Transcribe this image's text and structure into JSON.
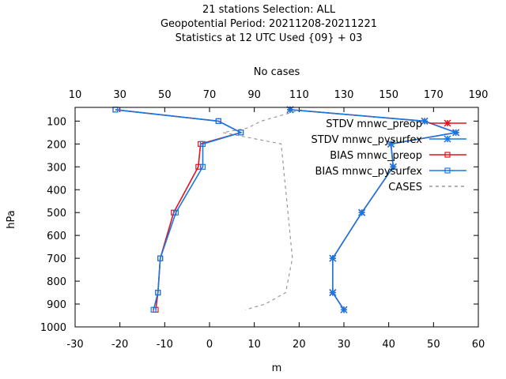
{
  "chart_data": {
    "type": "line",
    "title_lines": [
      "21 stations Selection: ALL",
      "Geopotential  Period: 20211208-20211221",
      "Statistics at 12 UTC  Used {09} + 03"
    ],
    "xlabel": "m",
    "ylabel": "hPa",
    "x2label": "No cases",
    "xlim": [
      -30,
      60
    ],
    "x2lim": [
      10,
      190
    ],
    "ylim": [
      1000,
      40
    ],
    "xticks": [
      -30,
      -20,
      -10,
      0,
      10,
      20,
      30,
      40,
      50,
      60
    ],
    "x2ticks": [
      10,
      30,
      50,
      70,
      90,
      110,
      130,
      150,
      170,
      190
    ],
    "yticks": [
      100,
      200,
      300,
      400,
      500,
      600,
      700,
      800,
      900,
      1000
    ],
    "legend_position": "top-right",
    "series": [
      {
        "name": "STDV mnwc_preop",
        "color": "#e0141e",
        "marker": "star",
        "dash": "",
        "axis": "x",
        "points": [
          [
            18,
            50
          ],
          [
            48,
            100
          ],
          [
            55,
            150
          ],
          [
            40.5,
            200
          ],
          [
            41,
            300
          ],
          [
            34,
            500
          ],
          [
            27.5,
            700
          ],
          [
            27.5,
            850
          ],
          [
            30,
            925
          ]
        ]
      },
      {
        "name": "STDV mnwc_pysurfex",
        "color": "#1478e6",
        "marker": "star",
        "dash": "",
        "axis": "x",
        "points": [
          [
            18,
            50
          ],
          [
            48,
            100
          ],
          [
            55,
            150
          ],
          [
            40.5,
            200
          ],
          [
            41,
            300
          ],
          [
            34,
            500
          ],
          [
            27.5,
            700
          ],
          [
            27.5,
            850
          ],
          [
            30,
            925
          ]
        ]
      },
      {
        "name": "BIAS mnwc_preop",
        "color": "#e0141e",
        "marker": "square",
        "dash": "",
        "axis": "x",
        "points": [
          [
            -21,
            50
          ],
          [
            2,
            100
          ],
          [
            7,
            150
          ],
          [
            -2,
            200
          ],
          [
            -2.5,
            300
          ],
          [
            -8,
            500
          ],
          [
            -11,
            700
          ],
          [
            -11.5,
            850
          ],
          [
            -12,
            925
          ]
        ]
      },
      {
        "name": "BIAS mnwc_pysurfex",
        "color": "#1478e6",
        "marker": "square",
        "dash": "",
        "axis": "x",
        "points": [
          [
            -21,
            50
          ],
          [
            2,
            100
          ],
          [
            7,
            150
          ],
          [
            -1.5,
            200
          ],
          [
            -1.5,
            300
          ],
          [
            -7.5,
            500
          ],
          [
            -11,
            700
          ],
          [
            -11.5,
            850
          ],
          [
            -12.5,
            925
          ]
        ]
      },
      {
        "name": "CASES",
        "color": "#999999",
        "marker": "none",
        "dash": "4,4",
        "axis": "x2",
        "points": [
          [
            111,
            50
          ],
          [
            93,
            100
          ],
          [
            87,
            130
          ],
          [
            76,
            150
          ],
          [
            102,
            200
          ],
          [
            103,
            300
          ],
          [
            105,
            500
          ],
          [
            107,
            700
          ],
          [
            104,
            850
          ],
          [
            95,
            900
          ],
          [
            86,
            925
          ]
        ]
      }
    ]
  }
}
